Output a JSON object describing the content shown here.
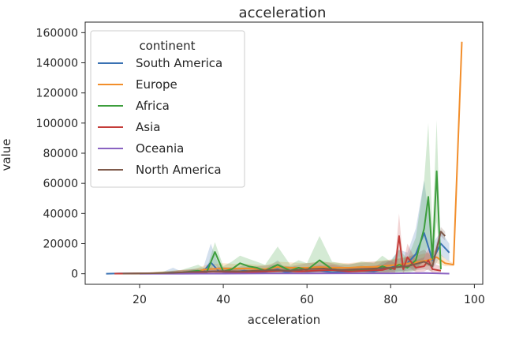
{
  "chart_data": {
    "type": "line",
    "title": "acceleration",
    "xlabel": "acceleration",
    "ylabel": "value",
    "xlim": [
      7,
      102
    ],
    "ylim": [
      -7000,
      167000
    ],
    "xticks": [
      20,
      40,
      60,
      80,
      100
    ],
    "yticks": [
      0,
      20000,
      40000,
      60000,
      80000,
      100000,
      120000,
      140000,
      160000
    ],
    "grid": false,
    "legend": {
      "title": "continent",
      "placement": "top-left"
    },
    "series": [
      {
        "name": "South America",
        "color": "#3a72b3",
        "x": [
          12,
          15,
          20,
          25,
          28,
          30,
          33,
          35,
          37,
          39,
          42,
          45,
          48,
          50,
          53,
          55,
          57,
          60,
          63,
          66,
          70,
          73,
          76,
          78,
          80,
          82,
          84,
          86,
          88,
          90,
          92,
          94
        ],
        "y": [
          0,
          200,
          300,
          300,
          900,
          400,
          1200,
          600,
          7500,
          1500,
          800,
          2000,
          900,
          1200,
          3000,
          900,
          1800,
          1500,
          2000,
          900,
          1500,
          2000,
          1500,
          3000,
          4000,
          6000,
          7000,
          13000,
          27000,
          9000,
          20000,
          14000
        ],
        "band_low": [
          0,
          0,
          0,
          0,
          0,
          0,
          0,
          0,
          1500,
          0,
          0,
          0,
          0,
          0,
          0,
          0,
          0,
          0,
          0,
          0,
          0,
          0,
          0,
          500,
          1000,
          1500,
          2000,
          3000,
          8000,
          3000,
          12000,
          8000
        ],
        "band_high": [
          300,
          500,
          600,
          600,
          4000,
          1500,
          3000,
          2000,
          20000,
          5000,
          2500,
          6000,
          3000,
          3000,
          9000,
          3000,
          5000,
          4000,
          6000,
          3000,
          4000,
          5500,
          4000,
          8000,
          9000,
          16000,
          14000,
          30000,
          62000,
          20000,
          28000,
          20000
        ]
      },
      {
        "name": "Europe",
        "color": "#f28e2b",
        "x": [
          15,
          20,
          25,
          30,
          33,
          36,
          40,
          43,
          46,
          50,
          53,
          56,
          60,
          63,
          66,
          70,
          73,
          76,
          80,
          83,
          86,
          89,
          91,
          93,
          95,
          97
        ],
        "y": [
          100,
          200,
          500,
          800,
          1200,
          3000,
          3500,
          3500,
          3500,
          3000,
          4500,
          4000,
          4000,
          4500,
          4000,
          4000,
          4500,
          4500,
          5500,
          6500,
          7500,
          9000,
          11000,
          7000,
          6000,
          154000
        ],
        "band_low": [
          0,
          0,
          0,
          0,
          300,
          1000,
          1500,
          1500,
          1500,
          1200,
          2000,
          1800,
          2000,
          2000,
          1800,
          2000,
          2200,
          2200,
          3000,
          3500,
          4500,
          5000,
          7000,
          5000,
          5000,
          154000
        ],
        "band_high": [
          300,
          600,
          1500,
          2500,
          3000,
          6000,
          7000,
          6500,
          6500,
          5500,
          8000,
          7500,
          7000,
          8000,
          7500,
          7000,
          8000,
          8000,
          9500,
          11000,
          12000,
          14000,
          16000,
          10000,
          7000,
          154000
        ]
      },
      {
        "name": "Africa",
        "color": "#3d9e3d",
        "x": [
          18,
          22,
          26,
          30,
          34,
          36,
          38,
          40,
          42,
          44,
          46,
          48,
          50,
          53,
          56,
          58,
          60,
          63,
          66,
          70,
          73,
          76,
          78,
          80,
          82,
          84,
          86,
          88,
          89,
          90,
          91,
          92
        ],
        "y": [
          100,
          300,
          500,
          800,
          2000,
          800,
          14500,
          1500,
          3000,
          7000,
          5000,
          4000,
          2000,
          6000,
          2000,
          4000,
          2500,
          9000,
          3000,
          2000,
          3000,
          2500,
          5000,
          3000,
          6000,
          4000,
          9000,
          30000,
          51000,
          10000,
          68000,
          3000
        ],
        "band_low": [
          0,
          0,
          0,
          0,
          500,
          0,
          6000,
          0,
          500,
          2000,
          1500,
          1000,
          500,
          1000,
          0,
          1000,
          500,
          2000,
          500,
          0,
          500,
          500,
          1000,
          500,
          1000,
          500,
          2000,
          10000,
          20000,
          2000,
          35000,
          0
        ],
        "band_high": [
          300,
          800,
          1500,
          2500,
          6000,
          3000,
          21000,
          5000,
          8000,
          12000,
          10000,
          8000,
          6000,
          18000,
          6000,
          9000,
          7000,
          25000,
          8000,
          6000,
          8000,
          7000,
          12000,
          8000,
          16000,
          10000,
          24000,
          62000,
          100000,
          30000,
          102000,
          8000
        ]
      },
      {
        "name": "Asia",
        "color": "#c43c39",
        "x": [
          14,
          20,
          26,
          30,
          34,
          38,
          42,
          46,
          50,
          54,
          58,
          62,
          66,
          70,
          74,
          78,
          80,
          81,
          82,
          83,
          84,
          86,
          88,
          89,
          90,
          92
        ],
        "y": [
          100,
          200,
          400,
          800,
          1000,
          1500,
          1200,
          1000,
          1500,
          2000,
          1500,
          2000,
          2500,
          1500,
          2000,
          2500,
          4000,
          3000,
          25000,
          3000,
          11000,
          4000,
          5000,
          9000,
          3000,
          2000
        ],
        "band_low": [
          0,
          0,
          0,
          0,
          200,
          300,
          200,
          200,
          300,
          400,
          300,
          400,
          500,
          300,
          400,
          500,
          1000,
          500,
          12000,
          500,
          5000,
          1000,
          1500,
          3000,
          500,
          500
        ],
        "band_high": [
          300,
          500,
          1000,
          2500,
          2500,
          4000,
          3000,
          2500,
          3500,
          5000,
          4000,
          5000,
          6000,
          4000,
          5000,
          6000,
          9000,
          7000,
          40000,
          7000,
          20000,
          9000,
          11000,
          17000,
          7000,
          5000
        ]
      },
      {
        "name": "Oceania",
        "color": "#8a63c2",
        "x": [
          20,
          30,
          40,
          50,
          60,
          70,
          80,
          85,
          88,
          91,
          94
        ],
        "y": [
          0,
          0,
          100,
          200,
          200,
          300,
          300,
          400,
          500,
          300,
          100
        ],
        "band_low": [
          0,
          0,
          0,
          0,
          0,
          0,
          0,
          0,
          0,
          0,
          0
        ],
        "band_high": [
          200,
          200,
          300,
          500,
          500,
          700,
          700,
          900,
          1200,
          700,
          300
        ]
      },
      {
        "name": "North America",
        "color": "#7f5a4b",
        "x": [
          16,
          22,
          28,
          32,
          36,
          40,
          44,
          48,
          52,
          56,
          60,
          64,
          68,
          72,
          76,
          80,
          84,
          88,
          90,
          92,
          93
        ],
        "y": [
          100,
          300,
          600,
          1200,
          1500,
          1800,
          1500,
          2000,
          2500,
          2000,
          3000,
          3500,
          2500,
          3000,
          3500,
          4000,
          5000,
          8000,
          5000,
          28000,
          25000
        ],
        "band_low": [
          0,
          0,
          100,
          300,
          400,
          500,
          400,
          500,
          700,
          500,
          800,
          1000,
          700,
          800,
          1000,
          1200,
          1500,
          3000,
          1500,
          25000,
          22000
        ],
        "band_high": [
          300,
          700,
          1500,
          3000,
          4000,
          4500,
          4000,
          5000,
          6000,
          5000,
          7000,
          8000,
          6000,
          7000,
          8000,
          9000,
          11000,
          16000,
          11000,
          31000,
          28000
        ]
      }
    ]
  }
}
